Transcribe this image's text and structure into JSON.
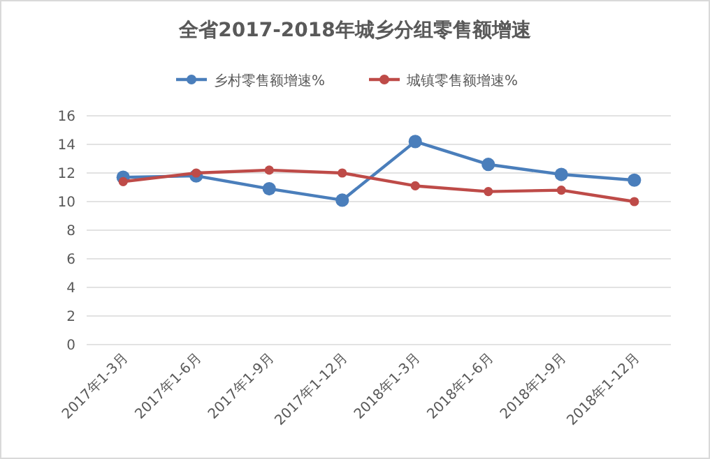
{
  "chart_data": {
    "type": "line",
    "title": "全省2017-2018年城乡分组零售额增速",
    "categories": [
      "2017年1-3月",
      "2017年1-6月",
      "2017年1-9月",
      "2017年1-12月",
      "2018年1-3月",
      "2018年1-6月",
      "2018年1-9月",
      "2018年1-12月"
    ],
    "series": [
      {
        "name": "乡村零售额增速%",
        "color": "#4a7ebb",
        "values": [
          11.7,
          11.8,
          10.9,
          10.1,
          14.2,
          12.6,
          11.9,
          11.5
        ]
      },
      {
        "name": "城镇零售额增速%",
        "color": "#be4b48",
        "values": [
          11.4,
          12.0,
          12.2,
          12.0,
          11.1,
          10.7,
          10.8,
          10.0
        ]
      }
    ],
    "ylim": [
      0,
      16
    ],
    "yticks": [
      0,
      2,
      4,
      6,
      8,
      10,
      12,
      14,
      16
    ],
    "grid": "y",
    "legend": "top",
    "marker": "circle",
    "line_style": "solid"
  }
}
